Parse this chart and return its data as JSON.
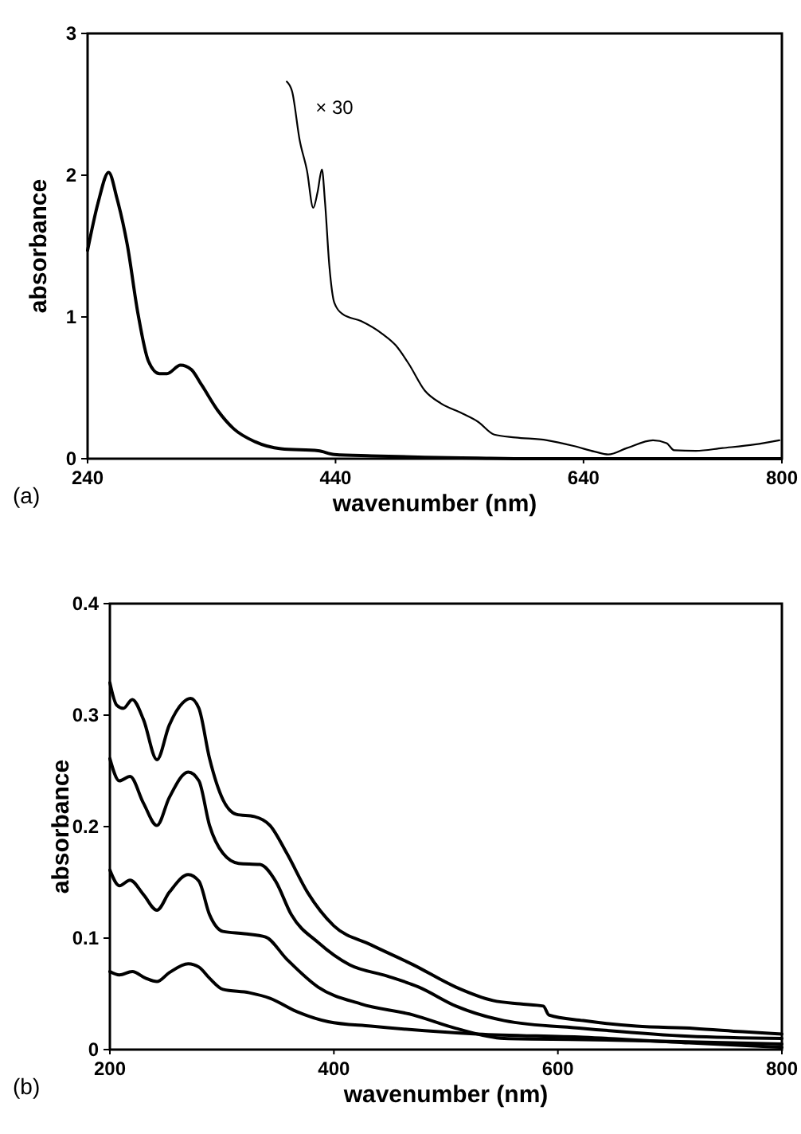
{
  "chart_data": [
    {
      "type": "line",
      "xlabel": "wavenumber (nm)",
      "ylabel": "absorbance",
      "xlim": [
        240,
        800
      ],
      "xticks": [
        240,
        440,
        640,
        800
      ],
      "ylim": [
        0,
        3
      ],
      "yticks": [
        0,
        1,
        2,
        3
      ],
      "annotations": [
        "(a)"
      ],
      "series": [
        {
          "color": "#000000",
          "x": [
            240,
            248.6,
            257,
            263.6,
            272,
            280.7,
            289,
            298,
            304,
            315,
            323.5,
            332,
            345,
            358,
            375,
            396,
            426,
            439,
            469,
            512,
            555,
            598,
            799
          ],
          "values": [
            1.47,
            1.81,
            2.02,
            1.84,
            1.51,
            1.02,
            0.69,
            0.6,
            0.6,
            0.66,
            0.63,
            0.52,
            0.34,
            0.21,
            0.12,
            0.07,
            0.056,
            0.03,
            0.02,
            0.01,
            0.004,
            0,
            0
          ]
        },
        {
          "name": "× 30",
          "color": "#000000",
          "x": [
            400.7,
            405,
            411,
            417,
            422,
            425.5,
            429,
            431.5,
            435,
            439,
            445.7,
            460.7,
            477.8,
            488.5,
            499,
            512,
            525,
            542,
            555,
            568,
            585,
            610.6,
            632,
            649,
            660,
            675,
            696,
            707,
            713,
            730.6,
            752,
            778,
            798
          ],
          "values": [
            2.66,
            2.59,
            2.25,
            2.03,
            1.77,
            1.88,
            2.04,
            1.81,
            1.36,
            1.1,
            1.02,
            0.97,
            0.88,
            0.8,
            0.67,
            0.48,
            0.39,
            0.32,
            0.26,
            0.17,
            0.15,
            0.13,
            0.09,
            0.05,
            0.03,
            0.075,
            0.13,
            0.11,
            0.06,
            0.056,
            0.075,
            0.1,
            0.13
          ]
        }
      ]
    },
    {
      "type": "line",
      "xlabel": "wavenumber (nm)",
      "ylabel": "absorbance",
      "xlim": [
        200,
        800
      ],
      "xticks": [
        200,
        400,
        600,
        800
      ],
      "ylim": [
        0,
        0.4
      ],
      "yticks": [
        0,
        0.1,
        0.2,
        0.3,
        0.4
      ],
      "annotations": [
        "(b)"
      ],
      "series": [
        {
          "color": "#000000",
          "x": [
            200,
            206,
            212,
            220,
            230,
            242,
            253,
            265,
            272,
            279.5,
            289,
            301,
            313,
            329,
            343,
            358,
            376.5,
            400,
            433,
            471,
            509,
            542,
            566,
            587,
            592,
            622.6,
            670,
            722,
            765,
            800
          ],
          "values": [
            0.329,
            0.309,
            0.306,
            0.314,
            0.296,
            0.26,
            0.291,
            0.311,
            0.315,
            0.306,
            0.261,
            0.224,
            0.211,
            0.209,
            0.201,
            0.176,
            0.141,
            0.111,
            0.094,
            0.076,
            0.056,
            0.044,
            0.041,
            0.039,
            0.031,
            0.026,
            0.021,
            0.019,
            0.016,
            0.014
          ]
        },
        {
          "color": "#000000",
          "x": [
            200,
            208.5,
            218,
            230,
            242,
            253,
            270,
            279.5,
            289,
            301,
            315,
            334,
            348,
            362,
            386,
            414,
            447.5,
            476,
            509,
            552,
            622.6,
            717,
            800
          ],
          "values": [
            0.261,
            0.241,
            0.245,
            0.221,
            0.201,
            0.226,
            0.249,
            0.241,
            0.201,
            0.176,
            0.167,
            0.166,
            0.151,
            0.121,
            0.096,
            0.076,
            0.066,
            0.056,
            0.039,
            0.026,
            0.019,
            0.012,
            0.01
          ]
        },
        {
          "color": "#000000",
          "x": [
            200,
            208.5,
            218,
            230,
            242,
            253,
            270,
            279.5,
            289,
            301,
            320,
            339,
            358,
            386,
            424,
            471,
            509,
            552,
            622.6,
            717,
            800
          ],
          "values": [
            0.161,
            0.147,
            0.152,
            0.139,
            0.125,
            0.141,
            0.157,
            0.151,
            0.121,
            0.106,
            0.104,
            0.101,
            0.081,
            0.056,
            0.041,
            0.031,
            0.019,
            0.01,
            0.009,
            0.007,
            0.005
          ]
        },
        {
          "color": "#000000",
          "x": [
            200,
            208.5,
            220,
            232,
            242,
            253,
            270,
            279.5,
            289,
            301,
            324.5,
            343,
            367,
            395,
            433,
            481,
            528,
            622.6,
            717,
            800
          ],
          "values": [
            0.07,
            0.067,
            0.07,
            0.064,
            0.061,
            0.069,
            0.077,
            0.074,
            0.064,
            0.054,
            0.051,
            0.046,
            0.034,
            0.025,
            0.021,
            0.017,
            0.014,
            0.011,
            0.006,
            0.002
          ]
        }
      ]
    }
  ]
}
